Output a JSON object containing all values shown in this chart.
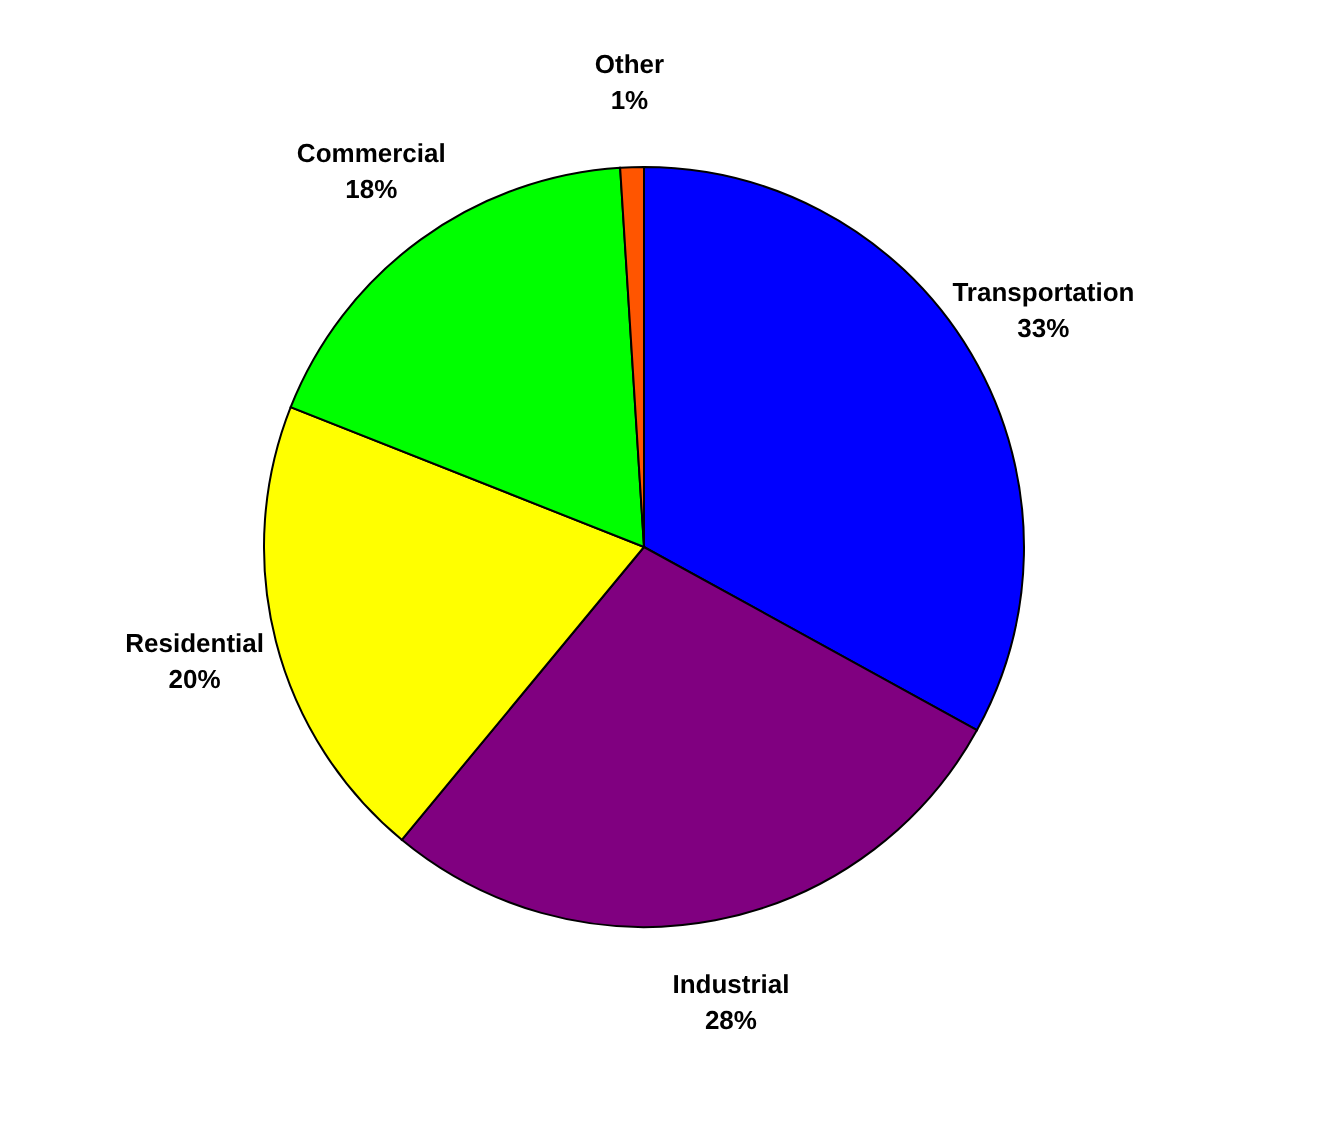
{
  "chart_data": {
    "type": "pie",
    "categories": [
      "Transportation",
      "Industrial",
      "Residential",
      "Commercial",
      "Other"
    ],
    "values": [
      33,
      28,
      20,
      18,
      1
    ],
    "value_labels": [
      "33%",
      "28%",
      "20%",
      "18%",
      "1%"
    ],
    "colors": [
      "#0000ff",
      "#800080",
      "#ffff00",
      "#00ff00",
      "#ff5500"
    ]
  }
}
